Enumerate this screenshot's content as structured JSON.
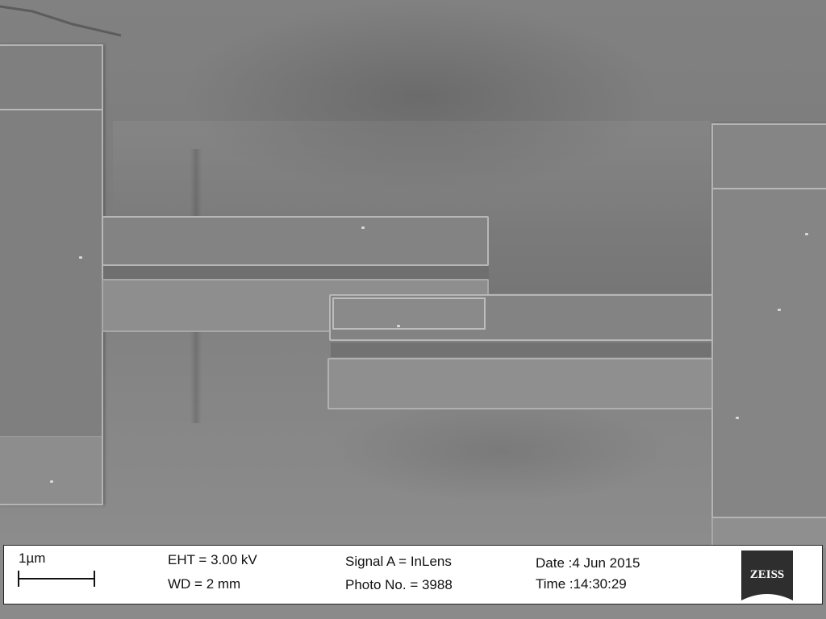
{
  "micrograph": {
    "description_icons": [
      "electrode-pad",
      "cantilever-beam"
    ]
  },
  "info_bar": {
    "scale_bar_label": "1µm",
    "eht": "EHT =  3.00 kV",
    "wd": "WD =    2 mm",
    "signal": "Signal A = InLens",
    "photo_no": "Photo No. = 3988",
    "date": "Date :4 Jun 2015",
    "time": "Time :14:30:29",
    "logo_text": "ZEISS",
    "logo_color": "#2e2e2e"
  }
}
